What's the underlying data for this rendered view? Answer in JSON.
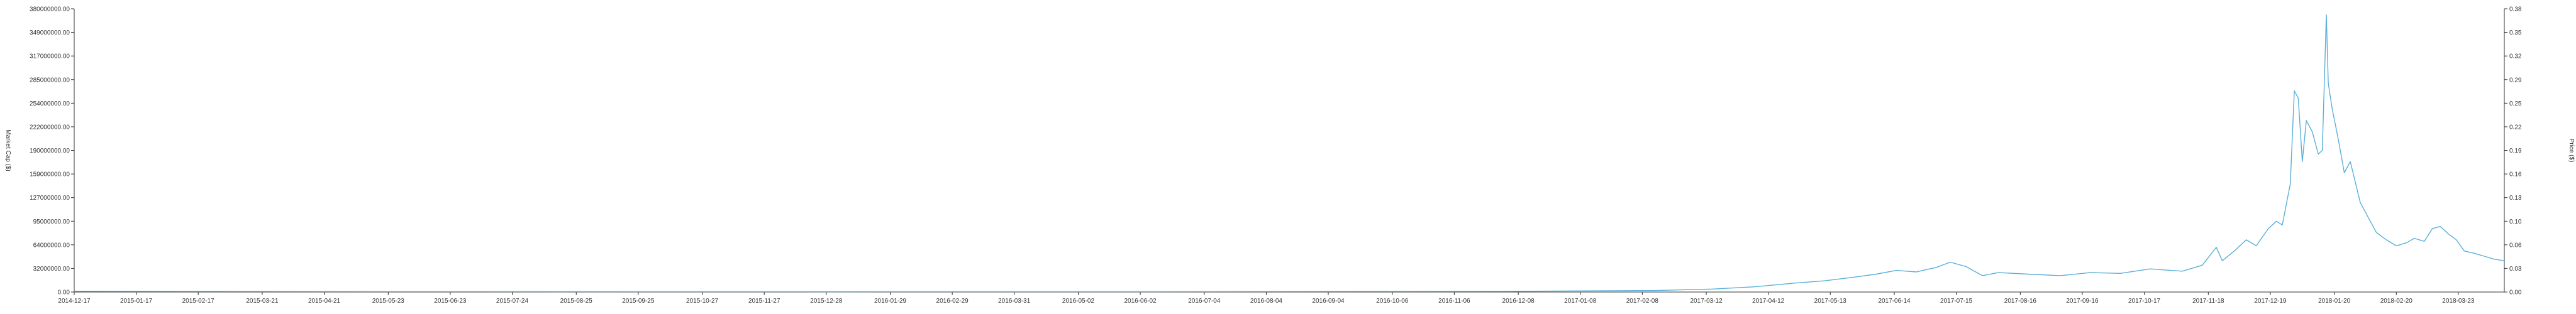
{
  "chart_data": {
    "type": "line",
    "title": "",
    "x_start": "2014-12-17",
    "x_end": "2018-04-15",
    "xticks": [
      "2014-12-17",
      "2015-01-17",
      "2015-02-17",
      "2015-03-21",
      "2015-04-21",
      "2015-05-23",
      "2015-06-23",
      "2015-07-24",
      "2015-08-25",
      "2015-09-25",
      "2015-10-27",
      "2015-11-27",
      "2015-12-28",
      "2016-01-29",
      "2016-02-29",
      "2016-03-31",
      "2016-05-02",
      "2016-06-02",
      "2016-07-04",
      "2016-08-04",
      "2016-09-04",
      "2016-10-06",
      "2016-11-06",
      "2016-12-08",
      "2017-01-08",
      "2017-02-08",
      "2017-03-12",
      "2017-04-12",
      "2017-05-13",
      "2017-06-14",
      "2017-07-15",
      "2017-08-16",
      "2017-09-16",
      "2017-10-17",
      "2017-11-18",
      "2017-12-19",
      "2018-01-20",
      "2018-02-20",
      "2018-03-23"
    ],
    "left_axis": {
      "label": "Market Cap ($)",
      "ylim": [
        0,
        380000000
      ],
      "ticks": [
        "0.00",
        "32000000.00",
        "64000000.00",
        "95000000.00",
        "127000000.00",
        "159000000.00",
        "190000000.00",
        "222000000.00",
        "254000000.00",
        "285000000.00",
        "317000000.00",
        "349000000.00",
        "380000000.00"
      ]
    },
    "right_axis": {
      "label": "Price ($)",
      "ylim": [
        0,
        0.38
      ],
      "ticks": [
        "0.00",
        "0.03",
        "0.06",
        "0.10",
        "0.13",
        "0.16",
        "0.19",
        "0.22",
        "0.25",
        "0.29",
        "0.32",
        "0.35",
        "0.38"
      ]
    },
    "series": [
      {
        "color": "#5aafd9",
        "points": [
          [
            "2014-12-17",
            1000000
          ],
          [
            "2015-06-01",
            600000
          ],
          [
            "2016-01-01",
            400000
          ],
          [
            "2016-06-01",
            500000
          ],
          [
            "2016-12-01",
            900000
          ],
          [
            "2017-02-15",
            2000000
          ],
          [
            "2017-03-15",
            4000000
          ],
          [
            "2017-04-05",
            7000000
          ],
          [
            "2017-04-25",
            12000000
          ],
          [
            "2017-05-10",
            15000000
          ],
          [
            "2017-05-25",
            20000000
          ],
          [
            "2017-06-05",
            24000000
          ],
          [
            "2017-06-15",
            29000000
          ],
          [
            "2017-06-25",
            27000000
          ],
          [
            "2017-07-05",
            33000000
          ],
          [
            "2017-07-12",
            40000000
          ],
          [
            "2017-07-20",
            34000000
          ],
          [
            "2017-07-28",
            22000000
          ],
          [
            "2017-08-05",
            26000000
          ],
          [
            "2017-08-20",
            24000000
          ],
          [
            "2017-09-05",
            22000000
          ],
          [
            "2017-09-20",
            26000000
          ],
          [
            "2017-10-05",
            25000000
          ],
          [
            "2017-10-20",
            31000000
          ],
          [
            "2017-11-05",
            28000000
          ],
          [
            "2017-11-15",
            36000000
          ],
          [
            "2017-11-22",
            60000000
          ],
          [
            "2017-11-25",
            42000000
          ],
          [
            "2017-12-01",
            55000000
          ],
          [
            "2017-12-07",
            70000000
          ],
          [
            "2017-12-12",
            62000000
          ],
          [
            "2017-12-18",
            85000000
          ],
          [
            "2017-12-22",
            95000000
          ],
          [
            "2017-12-25",
            90000000
          ],
          [
            "2017-12-29",
            145000000
          ],
          [
            "2017-12-31",
            270000000
          ],
          [
            "2018-01-02",
            260000000
          ],
          [
            "2018-01-04",
            175000000
          ],
          [
            "2018-01-06",
            230000000
          ],
          [
            "2018-01-09",
            215000000
          ],
          [
            "2018-01-12",
            185000000
          ],
          [
            "2018-01-14",
            190000000
          ],
          [
            "2018-01-16",
            372000000
          ],
          [
            "2018-01-17",
            280000000
          ],
          [
            "2018-01-19",
            245000000
          ],
          [
            "2018-01-22",
            205000000
          ],
          [
            "2018-01-25",
            160000000
          ],
          [
            "2018-01-28",
            175000000
          ],
          [
            "2018-02-02",
            120000000
          ],
          [
            "2018-02-06",
            100000000
          ],
          [
            "2018-02-10",
            80000000
          ],
          [
            "2018-02-15",
            70000000
          ],
          [
            "2018-02-20",
            62000000
          ],
          [
            "2018-02-25",
            66000000
          ],
          [
            "2018-03-01",
            72000000
          ],
          [
            "2018-03-06",
            68000000
          ],
          [
            "2018-03-10",
            85000000
          ],
          [
            "2018-03-14",
            88000000
          ],
          [
            "2018-03-18",
            78000000
          ],
          [
            "2018-03-22",
            70000000
          ],
          [
            "2018-03-26",
            55000000
          ],
          [
            "2018-03-31",
            52000000
          ],
          [
            "2018-04-05",
            48000000
          ],
          [
            "2018-04-10",
            44000000
          ],
          [
            "2018-04-15",
            42000000
          ]
        ]
      }
    ],
    "grid": false,
    "legend": "none"
  }
}
